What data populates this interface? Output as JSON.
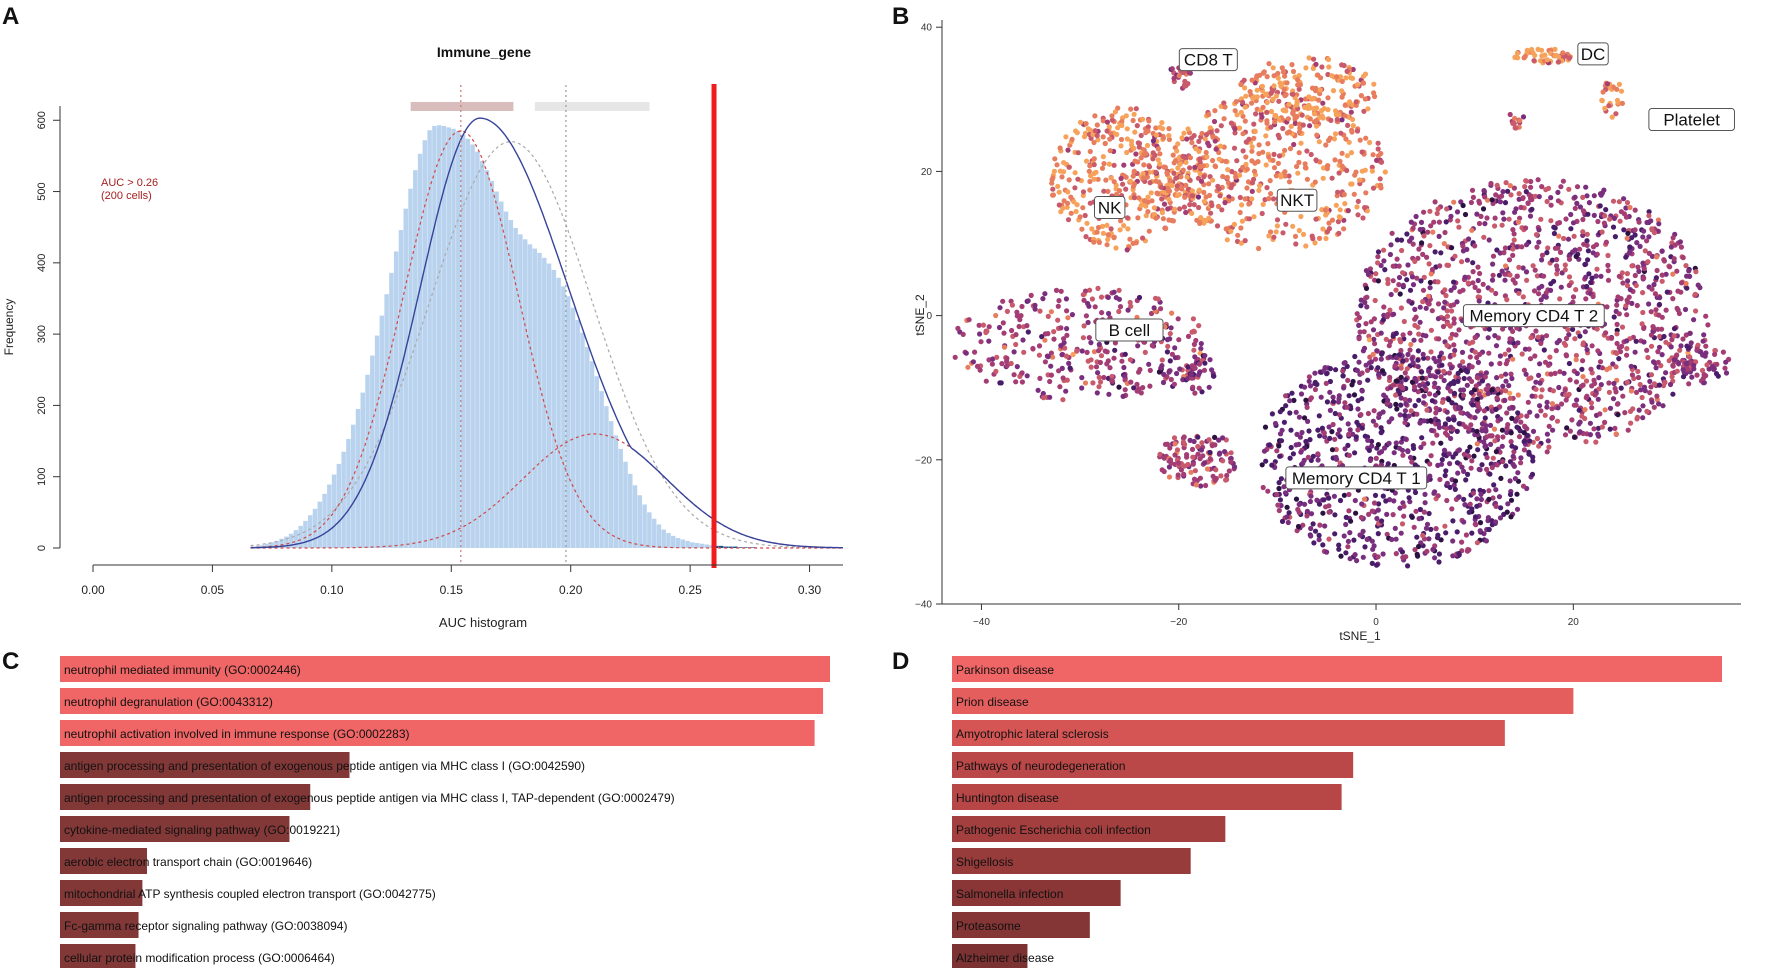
{
  "panels": {
    "A": {
      "letter": "A"
    },
    "B": {
      "letter": "B"
    },
    "C": {
      "letter": "C"
    },
    "D": {
      "letter": "D"
    }
  },
  "chart_data": [
    {
      "panel": "A",
      "type": "bar",
      "title": "Immune_gene",
      "xlabel": "AUC histogram",
      "ylabel": "Frequency",
      "xlim": [
        0,
        0.314
      ],
      "ylim": [
        0,
        620
      ],
      "xticks": [
        0.0,
        0.05,
        0.1,
        0.15,
        0.2,
        0.25,
        0.3
      ],
      "xtick_labels": [
        "0.00",
        "0.05",
        "0.10",
        "0.15",
        "0.20",
        "0.25",
        "0.30"
      ],
      "yticks": [
        0,
        100,
        200,
        300,
        400,
        500,
        600
      ],
      "ytick_labels": [
        "0",
        "100",
        "200",
        "300",
        "400",
        "500",
        "600"
      ],
      "annotation": {
        "line1": "AUC > 0.26",
        "line2": "(200 cells)"
      },
      "threshold": 0.26,
      "threshold_color": "#ee1c1c",
      "bar_color": "#b9d3ee",
      "selected_bar_color": "#17518f",
      "fit_color": "#35439a",
      "component_color": "#d04848",
      "curve_color": "#a9a9a9",
      "bins": {
        "start": 0.066,
        "width": 0.002
      },
      "counts": [
        2,
        3,
        4,
        6,
        8,
        10,
        13,
        16,
        20,
        25,
        31,
        38,
        46,
        55,
        65,
        76,
        89,
        103,
        118,
        135,
        153,
        173,
        195,
        218,
        243,
        270,
        298,
        326,
        356,
        386,
        416,
        446,
        476,
        504,
        530,
        553,
        572,
        586,
        592,
        593,
        592,
        590,
        588,
        585,
        580,
        574,
        566,
        556,
        543,
        530,
        515,
        500,
        486,
        472,
        460,
        449,
        440,
        433,
        426,
        420,
        414,
        407,
        399,
        390,
        379,
        367,
        353,
        337,
        320,
        302,
        282,
        262,
        241,
        220,
        199,
        178,
        158,
        139,
        121,
        104,
        88,
        74,
        61,
        50,
        41,
        33,
        26,
        21,
        17,
        14,
        12,
        10,
        8,
        7,
        6,
        5,
        4,
        3,
        3,
        2,
        2,
        2,
        1,
        1,
        1,
        1,
        0,
        0,
        0,
        0,
        0,
        0,
        0,
        0,
        0,
        0,
        0,
        0,
        0,
        0,
        0,
        0,
        0
      ],
      "fit": {
        "mean": 0.162,
        "sd": 0.037,
        "peak": 603,
        "tail_mean": 0.21,
        "tail_sd": 0.03,
        "tail_peak": 160
      },
      "components": [
        {
          "name": "component-1",
          "mean": 0.154,
          "sd": 0.024,
          "peak": 585
        },
        {
          "name": "component-2",
          "mean": 0.21,
          "sd": 0.03,
          "peak": 160
        }
      ],
      "gray_curve": {
        "mean": 0.175,
        "sd": 0.034,
        "peak": 570
      },
      "vlines": [
        0.154,
        0.198
      ],
      "ranges": [
        {
          "from": 0.133,
          "to": 0.176,
          "color": "#d9bcbc"
        },
        {
          "from": 0.185,
          "to": 0.233,
          "color": "#e6e6e6"
        }
      ]
    },
    {
      "panel": "B",
      "type": "scatter",
      "xlabel": "tSNE_1",
      "ylabel": "tSNE_2",
      "xlim": [
        -44,
        37
      ],
      "ylim": [
        -40,
        41
      ],
      "xticks": [
        -40,
        -20,
        0,
        20
      ],
      "xtick_labels": [
        "−40",
        "−20",
        "0",
        "20"
      ],
      "yticks": [
        -40,
        -20,
        0,
        20,
        40
      ],
      "ytick_labels": [
        "−40",
        "−20",
        "0",
        "20",
        "40"
      ],
      "palette": [
        "#2c1240",
        "#4a1d6b",
        "#7a2f7e",
        "#a33d74",
        "#c85a6c",
        "#e77d5e",
        "#f7a25b"
      ],
      "clusters": [
        {
          "label": "Memory CD4 T 2",
          "cx": 16,
          "cy": 0,
          "rx": 18,
          "ry": 19,
          "n": 1400,
          "level": 2.7
        },
        {
          "label": "Memory CD4 T 1",
          "cx": 2,
          "cy": -20,
          "rx": 14,
          "ry": 15,
          "n": 900,
          "level": 1.8
        },
        {
          "label": "NKT",
          "cx": -10,
          "cy": 20,
          "rx": 11,
          "ry": 11,
          "n": 500,
          "level": 5.0
        },
        {
          "label": "NK",
          "cx": -26,
          "cy": 19,
          "rx": 7,
          "ry": 10,
          "n": 320,
          "level": 5.2
        },
        {
          "label": "B cell",
          "cx": -30,
          "cy": -4,
          "rx": 13,
          "ry": 8,
          "n": 340,
          "level": 3.0
        },
        {
          "label": "CD8 T",
          "cx": -20,
          "cy": 33,
          "rx": 1.3,
          "ry": 1.6,
          "n": 25,
          "level": 3.3
        },
        {
          "label": "DC",
          "cx": 17,
          "cy": 36,
          "rx": 3,
          "ry": 1,
          "n": 50,
          "level": 5.6
        },
        {
          "label": "Platelet",
          "cx": 30,
          "cy": 27,
          "rx": 0.8,
          "ry": 1,
          "n": 10,
          "level": 2.0
        }
      ],
      "extra_clusters": [
        {
          "cx": -7,
          "cy": 31,
          "rx": 7,
          "ry": 5,
          "n": 180,
          "level": 5.4
        },
        {
          "cx": -20,
          "cy": 20,
          "rx": 6,
          "ry": 6,
          "n": 120,
          "level": 5.0
        },
        {
          "cx": -18,
          "cy": -20,
          "rx": 4,
          "ry": 4,
          "n": 120,
          "level": 3.2
        },
        {
          "cx": -19,
          "cy": -8,
          "rx": 3,
          "ry": 3,
          "n": 50,
          "level": 2.2
        },
        {
          "cx": 33,
          "cy": -7,
          "rx": 3,
          "ry": 3,
          "n": 60,
          "level": 2.6
        },
        {
          "cx": 24,
          "cy": 30,
          "rx": 1.2,
          "ry": 2.8,
          "n": 25,
          "level": 5.5
        },
        {
          "cx": 14,
          "cy": 27,
          "rx": 1.2,
          "ry": 1,
          "n": 12,
          "level": 3.2
        }
      ]
    },
    {
      "panel": "C",
      "type": "bar",
      "orientation": "horizontal",
      "labels": [
        "neutrophil mediated immunity (GO:0002446)",
        "neutrophil degranulation (GO:0043312)",
        "neutrophil activation involved in immune response (GO:0002283)",
        "antigen processing and presentation of exogenous peptide antigen via MHC class I (GO:0042590)",
        "antigen processing and presentation of exogenous peptide antigen via MHC class I, TAP-dependent (GO:0002479)",
        "cytokine-mediated signaling pathway (GO:0019221)",
        "aerobic electron transport chain (GO:0019646)",
        "mitochondrial ATP synthesis coupled electron transport (GO:0042775)",
        "Fc-gamma receptor signaling pathway (GO:0038094)",
        "cellular protein modification process (GO:0006464)"
      ],
      "values": [
        100,
        99.1,
        98.0,
        37.6,
        32.5,
        29.8,
        11.3,
        10.7,
        10.2,
        9.8
      ],
      "colors": [
        "#f06565",
        "#f06565",
        "#f06565",
        "#833838",
        "#833838",
        "#833838",
        "#833838",
        "#833838",
        "#833838",
        "#833838"
      ]
    },
    {
      "panel": "D",
      "type": "bar",
      "orientation": "horizontal",
      "labels": [
        "Parkinson disease",
        "Prion disease",
        "Amyotrophic lateral sclerosis",
        "Pathways of neurodegeneration",
        "Huntington disease",
        "Pathogenic Escherichia coli infection",
        "Shigellosis",
        "Salmonella infection",
        "Proteasome",
        "Alzheimer disease"
      ],
      "values": [
        100,
        80.7,
        71.8,
        52.1,
        50.6,
        35.5,
        31.0,
        21.9,
        17.9,
        9.8
      ],
      "colors": [
        "#f06565",
        "#e55e5e",
        "#d55555",
        "#bb4848",
        "#b74646",
        "#a33f3f",
        "#983b3b",
        "#8a3636",
        "#843535",
        "#7c3232"
      ]
    }
  ]
}
